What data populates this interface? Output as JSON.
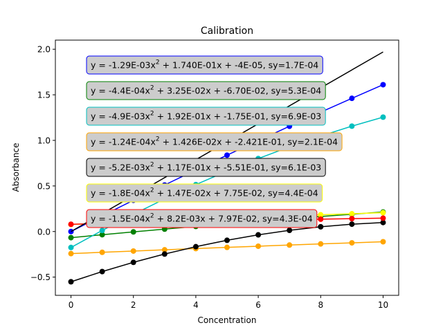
{
  "chart_data": {
    "type": "line",
    "title": "Calibration",
    "xlabel": "Concentration",
    "ylabel": "Absorbance",
    "xlim": [
      -0.5,
      10.5
    ],
    "ylim": [
      -0.7,
      2.1
    ],
    "xticks": [
      0,
      2,
      4,
      6,
      8,
      10
    ],
    "yticks": [
      -0.5,
      0.0,
      0.5,
      1.0,
      1.5,
      2.0
    ],
    "xtick_labels": [
      "0",
      "2",
      "4",
      "6",
      "8",
      "10"
    ],
    "ytick_labels": [
      "−0.5",
      "0.0",
      "0.5",
      "1.0",
      "1.5",
      "2.0"
    ],
    "grid": false,
    "series": [
      {
        "color": "#0000ff",
        "a": -0.00129,
        "b": 0.174,
        "c": -4e-05,
        "x": [
          0,
          1,
          2,
          3,
          4,
          5,
          6,
          7,
          8,
          9,
          10
        ],
        "markers": true,
        "label_pre": "y = -1.29E-03x",
        "label_post": " + 1.740E-01x + -4E-05, sy=1.7E-04"
      },
      {
        "color": "#008000",
        "a": -0.00044,
        "b": 0.0325,
        "c": -0.067,
        "x": [
          0,
          1,
          2,
          3,
          4,
          5,
          6,
          7,
          8,
          9,
          10
        ],
        "markers": true,
        "label_pre": "y = -4.4E-04x",
        "label_post": " + 3.25E-02x + -6.70E-02, sy=5.3E-04"
      },
      {
        "color": "#00bfbf",
        "a": -0.0049,
        "b": 0.192,
        "c": -0.175,
        "x": [
          0,
          1,
          2,
          3,
          4,
          5,
          6,
          7,
          8,
          9,
          10
        ],
        "markers": true,
        "label_pre": "y = -4.9E-03x",
        "label_post": " + 1.92E-01x + -1.75E-01, sy=6.9E-03"
      },
      {
        "color": "#ffa500",
        "a": -0.000124,
        "b": 0.01426,
        "c": -0.2421,
        "x": [
          0,
          1,
          2,
          3,
          4,
          5,
          6,
          7,
          8,
          9,
          10
        ],
        "markers": true,
        "label_pre": "y = -1.24E-04x",
        "label_post": " + 1.426E-02x + -2.421E-01, sy=2.1E-04"
      },
      {
        "color": "#000000",
        "a": -0.0052,
        "b": 0.117,
        "c": -0.551,
        "x": [
          0,
          1,
          2,
          3,
          4,
          5,
          6,
          7,
          8,
          9,
          10
        ],
        "markers": true,
        "label_pre": "y = -5.2E-03x",
        "label_post": " + 1.17E-01x + -5.51E-01, sy=6.1E-03"
      },
      {
        "color": "#ffff00",
        "a": -0.00018,
        "b": 0.0147,
        "c": 0.0775,
        "x": [
          0,
          1,
          2,
          3,
          4,
          5,
          6,
          7,
          8,
          9,
          10
        ],
        "markers": true,
        "label_pre": "y = -1.8E-04x",
        "label_post": " + 1.47E-02x + 7.75E-02, sy=4.4E-04"
      },
      {
        "color": "#ff0000",
        "a": -0.00015,
        "b": 0.0082,
        "c": 0.0797,
        "x": [
          0,
          1,
          2,
          3,
          4,
          5,
          6,
          7,
          8,
          9,
          10
        ],
        "markers": true,
        "label_pre": "y = -1.5E-04x",
        "label_post": " + 8.2E-03x + 7.97E-02, sy=4.3E-04"
      },
      {
        "color": "#000000",
        "x": [
          0,
          10
        ],
        "y": [
          0.0,
          1.97
        ],
        "markers": false
      }
    ],
    "annotation_box_fill": "#cccccc"
  }
}
